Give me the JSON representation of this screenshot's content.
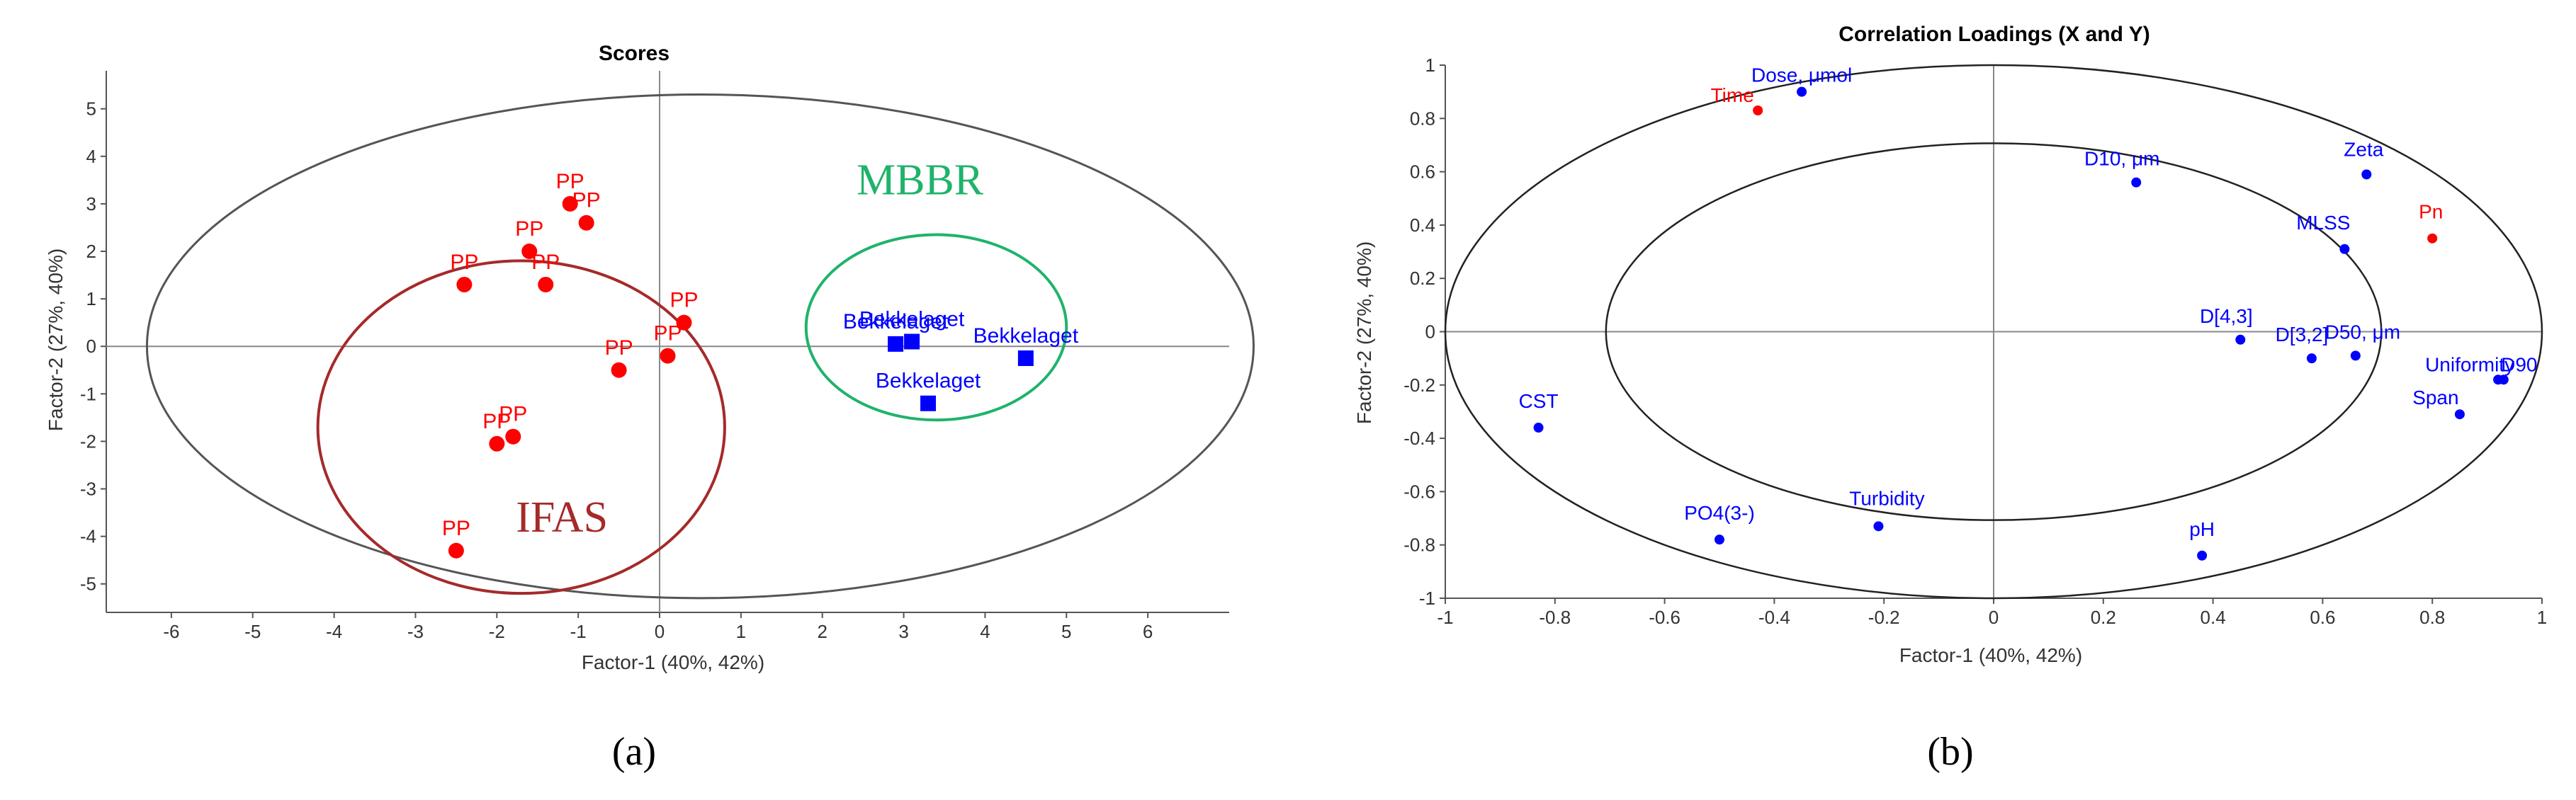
{
  "panels": {
    "a_label": "(a)",
    "b_label": "(b)"
  },
  "chart_data": [
    {
      "type": "scatter",
      "title": "Scores",
      "xlabel": "Factor-1 (40%, 42%)",
      "ylabel": "Factor-2 (27%, 40%)",
      "xlim": [
        -6.8,
        7
      ],
      "ylim": [
        -5.6,
        5.8
      ],
      "xticks": [
        "-6",
        "-5",
        "-4",
        "-3",
        "-2",
        "-1",
        "0",
        "1",
        "2",
        "3",
        "4",
        "5",
        "6"
      ],
      "yticks": [
        "-5",
        "-4",
        "-3",
        "-2",
        "-1",
        "0",
        "1",
        "2",
        "3",
        "4",
        "5"
      ],
      "grid": false,
      "groups": [
        {
          "text": "IFAS",
          "color": "#a52a2a",
          "center": [
            -1.7,
            -1.7
          ],
          "radii": [
            2.5,
            7.0
          ]
        },
        {
          "text": "MBBR",
          "color": "#1fb36b",
          "center": [
            3.4,
            0.4
          ],
          "radii": [
            1.6,
            3.9
          ]
        }
      ],
      "outer_ellipse": {
        "center": [
          0.5,
          0
        ],
        "radii": [
          6.8,
          5.3
        ],
        "color": "#555555"
      },
      "series": [
        {
          "color": "#ff0000",
          "marker": "circle",
          "points": [
            {
              "x": -1.1,
              "y": 3.0,
              "label": "PP"
            },
            {
              "x": -0.9,
              "y": 2.6,
              "label": "PP"
            },
            {
              "x": -1.6,
              "y": 2.0,
              "label": "PP"
            },
            {
              "x": -1.4,
              "y": 1.3,
              "label": "PP"
            },
            {
              "x": -2.4,
              "y": 1.3,
              "label": "PP"
            },
            {
              "x": 0.3,
              "y": 0.5,
              "label": "PP"
            },
            {
              "x": 0.1,
              "y": -0.2,
              "label": "PP"
            },
            {
              "x": -0.5,
              "y": -0.5,
              "label": "PP"
            },
            {
              "x": -1.8,
              "y": -1.9,
              "label": "PP"
            },
            {
              "x": -2.0,
              "y": -2.05,
              "label": "PP"
            },
            {
              "x": -2.5,
              "y": -4.3,
              "label": "PP"
            }
          ]
        },
        {
          "color": "#0000ff",
          "marker": "square",
          "points": [
            {
              "x": 2.9,
              "y": 0.05,
              "label": "Bekkelaget"
            },
            {
              "x": 3.1,
              "y": 0.1,
              "label": "Bekkelaget"
            },
            {
              "x": 4.5,
              "y": -0.25,
              "label": "Bekkelaget"
            },
            {
              "x": 3.3,
              "y": -1.2,
              "label": "Bekkelaget"
            }
          ]
        }
      ]
    },
    {
      "type": "scatter",
      "title": "Correlation Loadings (X and Y)",
      "xlabel": "Factor-1 (40%, 42%)",
      "ylabel": "Factor-2 (27%, 40%)",
      "xlim": [
        -1,
        1
      ],
      "ylim": [
        -1,
        1
      ],
      "xticks": [
        "-1",
        "-0.8",
        "-0.6",
        "-0.4",
        "-0.2",
        "0",
        "0.2",
        "0.4",
        "0.6",
        "0.8",
        "1"
      ],
      "yticks": [
        "-1",
        "-0.8",
        "-0.6",
        "-0.4",
        "-0.2",
        "0",
        "0.2",
        "0.4",
        "0.6",
        "0.8",
        "1"
      ],
      "grid": false,
      "series": [
        {
          "color": "#0000ff",
          "points": [
            {
              "x": -0.35,
              "y": 0.9,
              "label": "Dose, μmol"
            },
            {
              "x": 0.26,
              "y": 0.56,
              "label": "D10, μm"
            },
            {
              "x": 0.68,
              "y": 0.59,
              "label": "Zeta"
            },
            {
              "x": 0.64,
              "y": 0.31,
              "label": "MLSS"
            },
            {
              "x": 0.45,
              "y": -0.03,
              "label": "D[4,3]"
            },
            {
              "x": 0.58,
              "y": -0.1,
              "label": "D[3,2]"
            },
            {
              "x": 0.66,
              "y": -0.09,
              "label": "D50, μm"
            },
            {
              "x": 0.92,
              "y": -0.18,
              "label": "Uniformity"
            },
            {
              "x": 0.93,
              "y": -0.18,
              "label": "D90"
            },
            {
              "x": 0.85,
              "y": -0.31,
              "label": "Span"
            },
            {
              "x": -0.83,
              "y": -0.36,
              "label": "CST"
            },
            {
              "x": -0.5,
              "y": -0.78,
              "label": "PO4(3-)"
            },
            {
              "x": -0.21,
              "y": -0.73,
              "label": "Turbidity"
            },
            {
              "x": 0.38,
              "y": -0.84,
              "label": "pH"
            }
          ]
        },
        {
          "color": "#ff0000",
          "points": [
            {
              "x": -0.43,
              "y": 0.83,
              "label": "Time"
            },
            {
              "x": 0.8,
              "y": 0.35,
              "label": "Pn"
            }
          ]
        }
      ]
    }
  ]
}
